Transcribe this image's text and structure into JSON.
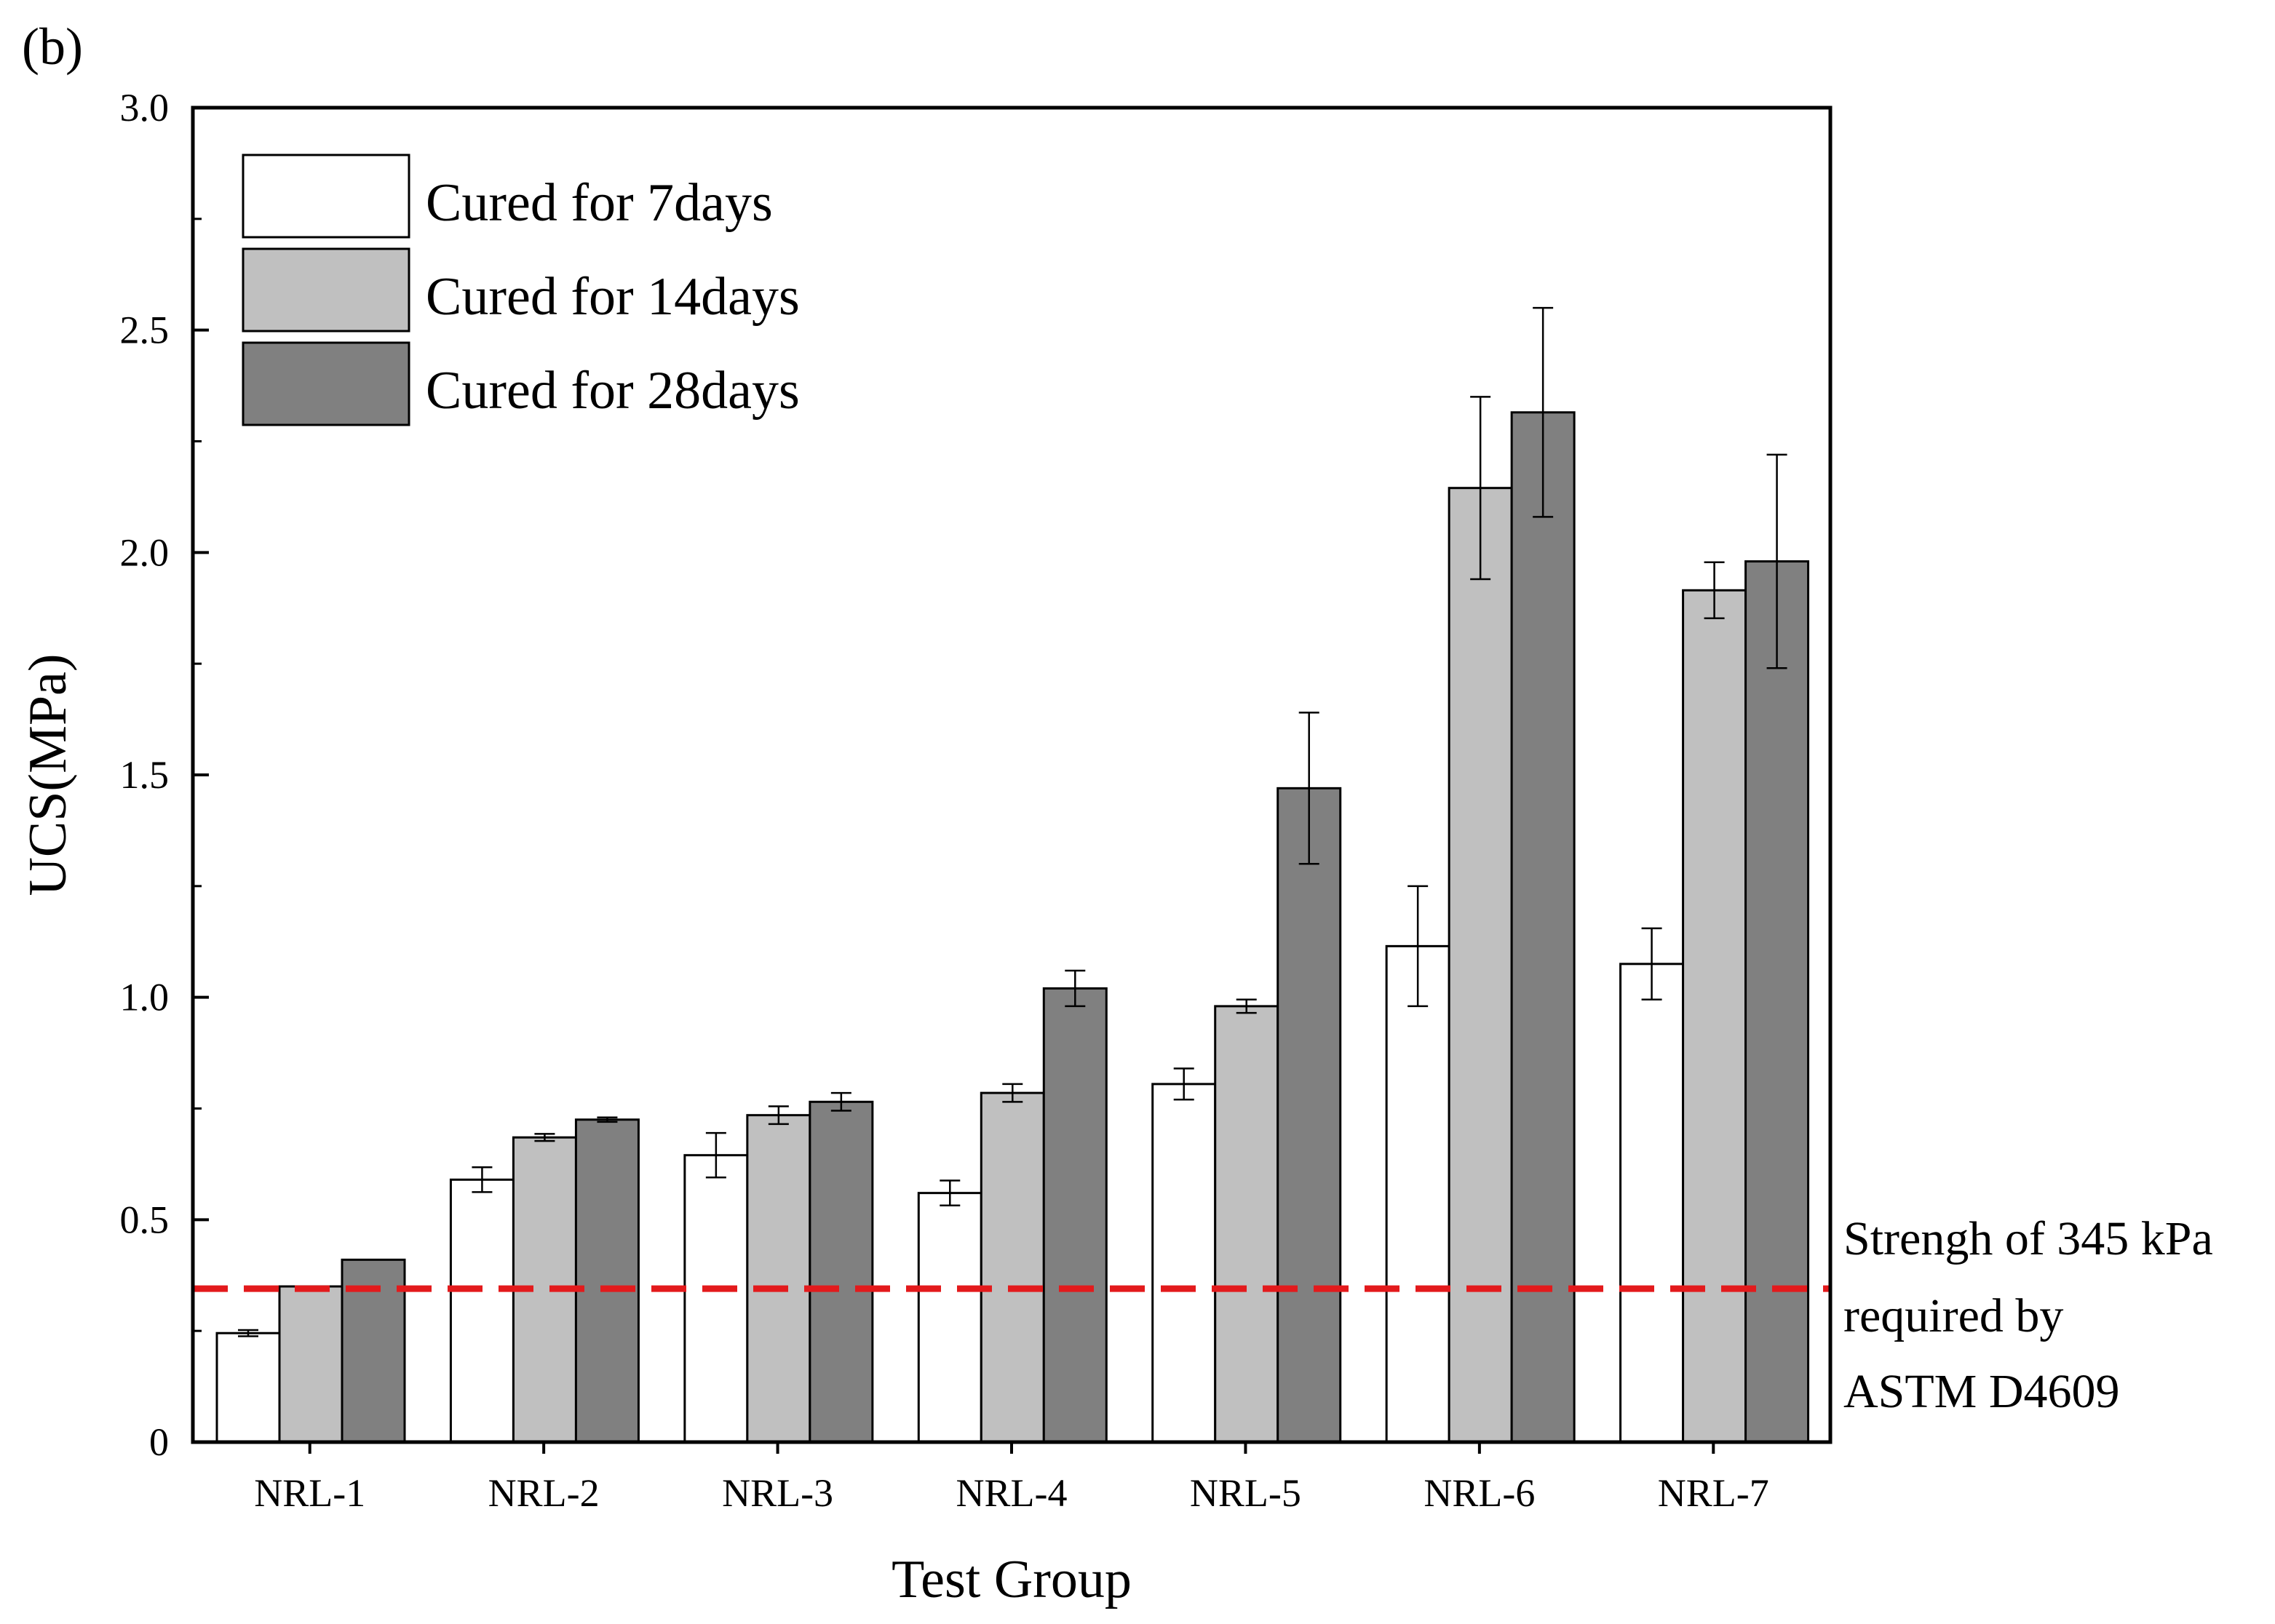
{
  "panel_label": "(b)",
  "chart_data": {
    "type": "bar",
    "xlabel": "Test Group",
    "ylabel": "UCS(MPa)",
    "ylim": [
      0,
      3.0
    ],
    "yticks": [
      0,
      0.5,
      1.0,
      1.5,
      2.0,
      2.5,
      3.0
    ],
    "ytick_labels": [
      "0",
      "0.5",
      "1.0",
      "1.5",
      "2.0",
      "2.5",
      "3.0"
    ],
    "categories": [
      "NRL-1",
      "NRL-2",
      "NRL-3",
      "NRL-4",
      "NRL-5",
      "NRL-6",
      "NRL-7"
    ],
    "series": [
      {
        "name": "Cured for 7days",
        "color": "#ffffff",
        "values": [
          0.245,
          0.59,
          0.645,
          0.56,
          0.805,
          1.115,
          1.075
        ],
        "errors": [
          0.007,
          0.028,
          0.05,
          0.028,
          0.035,
          0.135,
          0.08
        ]
      },
      {
        "name": "Cured for 14days",
        "color": "#c0c0c0",
        "values": [
          0.35,
          0.685,
          0.735,
          0.785,
          0.98,
          2.145,
          1.915
        ],
        "errors": [
          0.0,
          0.008,
          0.02,
          0.02,
          0.015,
          0.205,
          0.063
        ]
      },
      {
        "name": "Cured for 28days",
        "color": "#808080",
        "values": [
          0.41,
          0.725,
          0.765,
          1.02,
          1.47,
          2.315,
          1.98
        ],
        "errors": [
          0.0,
          0.005,
          0.02,
          0.04,
          0.17,
          0.235,
          0.24
        ]
      }
    ],
    "reference_line": {
      "value": 0.345,
      "color": "#e31a1c",
      "style": "dashed",
      "annotation": [
        "Strengh of 345 kPa",
        "required by",
        "ASTM D4609"
      ]
    },
    "legend_position": "top-left",
    "grid": false
  }
}
